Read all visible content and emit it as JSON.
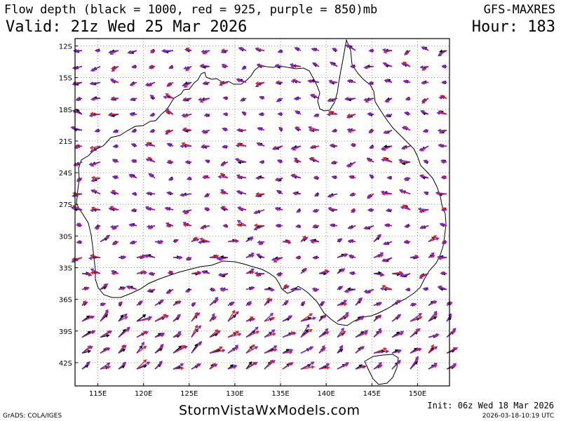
{
  "header": {
    "title": "Flow depth (black = 1000, red = 925, purple = 850)mb",
    "valid": "Valid: 21z Wed 25 Mar 2026",
    "model": "GFS-MAXRES",
    "hour": "Hour: 183"
  },
  "map": {
    "lon_range": [
      112.5,
      153.5
    ],
    "lat_range": [
      -44.2,
      -11.3
    ],
    "lat_ticks": [
      "12S",
      "15S",
      "18S",
      "21S",
      "24S",
      "27S",
      "30S",
      "33S",
      "36S",
      "39S",
      "42S"
    ],
    "lon_ticks": [
      "115E",
      "120E",
      "125E",
      "130E",
      "135E",
      "140E",
      "145E",
      "150E"
    ],
    "grid": "dotted",
    "levels": [
      {
        "name": "1000",
        "color": "#000000"
      },
      {
        "name": "925",
        "color": "#e8231e"
      },
      {
        "name": "850",
        "color": "#7a1fdc"
      }
    ]
  },
  "footer": {
    "brand": "StormVistaWxModels.com",
    "init": "Init: 06z Wed 18 Mar 2026",
    "timestamp": "2026-03-18-10:19 UTC",
    "credit": "GrADS: COLA/IGES"
  }
}
